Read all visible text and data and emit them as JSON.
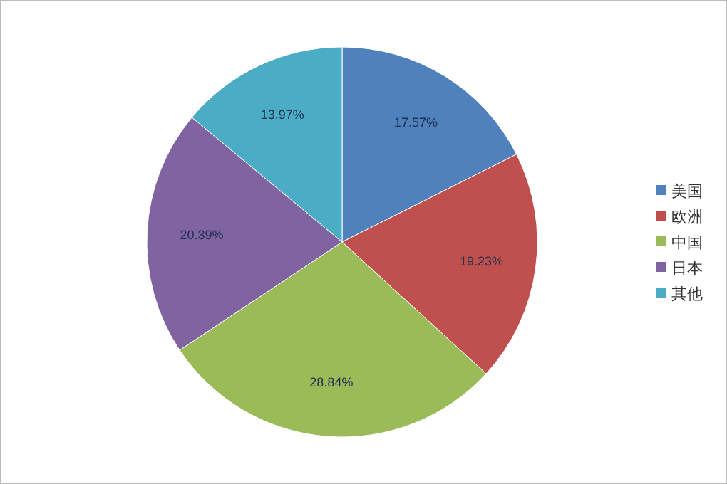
{
  "chart_data": {
    "type": "pie",
    "categories": [
      "美国",
      "欧洲",
      "中国",
      "日本",
      "其他"
    ],
    "values": [
      17.57,
      19.23,
      28.84,
      20.39,
      13.97
    ],
    "colors": [
      "#4f81bd",
      "#c0504d",
      "#9bbb59",
      "#8064a2",
      "#4bacc6"
    ],
    "value_labels": [
      "17.57%",
      "19.23%",
      "28.84%",
      "20.39%",
      "13.97%"
    ],
    "legend": "right"
  }
}
